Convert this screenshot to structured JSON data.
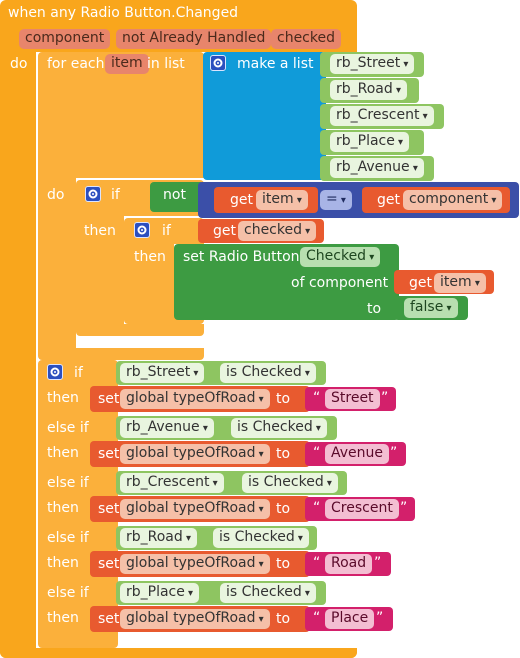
{
  "event": {
    "title": "when any Radio Button.Changed",
    "params": [
      "component",
      "not Already Handled",
      "checked"
    ],
    "do_label": "do"
  },
  "foreach": {
    "label": "for each",
    "var": "item",
    "in_list": "in list",
    "make_list": "make a list",
    "items": [
      "rb_Street",
      "rb_Road",
      "rb_Crescent",
      "rb_Place",
      "rb_Avenue"
    ],
    "do_label": "do"
  },
  "inner_if": {
    "if_label": "if",
    "not_label": "not",
    "get_label": "get",
    "get_var": "item",
    "equals_op": "=",
    "get_label2": "get",
    "get_var2": "component",
    "then_label": "then",
    "if2_label": "if",
    "get_label3": "get",
    "get_var3": "checked",
    "then2_label": "then",
    "set_text": "set Radio Button.",
    "set_prop": "Checked",
    "of_component": "of component",
    "get_label4": "get",
    "get_var4": "item",
    "to_label": "to",
    "false_value": "false"
  },
  "chain": {
    "if_label": "if",
    "then_label": "then",
    "elseif_label": "else if",
    "set_label": "set",
    "to_label": "to",
    "is_checked": "is Checked",
    "global_var": "global typeOfRoad",
    "branches": [
      {
        "component": "rb_Street",
        "value": "Street"
      },
      {
        "component": "rb_Avenue",
        "value": "Avenue"
      },
      {
        "component": "rb_Crescent",
        "value": "Crescent"
      },
      {
        "component": "rb_Road",
        "value": "Road"
      },
      {
        "component": "rb_Place",
        "value": "Place"
      }
    ]
  },
  "colors": {
    "event": "#f9a61c",
    "control": "#fbb03b",
    "list": "#109bd9",
    "logic": "#3d9b42",
    "math": "#3b4fa8",
    "variable": "#e85a2f",
    "text": "#d3206b",
    "component": "#8ec561"
  }
}
